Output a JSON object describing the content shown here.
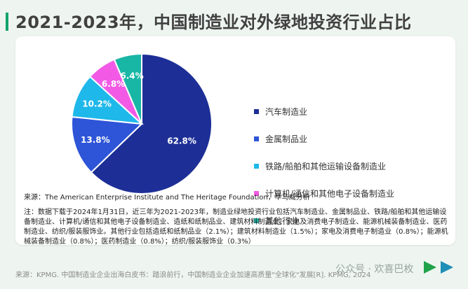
{
  "title": "2021-2023年，中国制造业对外绿地投资行业占比",
  "chart_data": {
    "type": "pie",
    "title": "2021-2023年，中国制造业对外绿地投资行业占比",
    "slices": [
      {
        "label": "汽车制造业",
        "value": 62.8,
        "display": "62.8%",
        "color": "#1d2f96"
      },
      {
        "label": "金属制品业",
        "value": 13.8,
        "display": "13.8%",
        "color": "#2e55d8"
      },
      {
        "label": "铁路/船舶和其他运输设备制造业",
        "value": 10.2,
        "display": "10.2%",
        "color": "#1fb8ea"
      },
      {
        "label": "计算机/通信和其他电子设备制造业",
        "value": 6.8,
        "display": "6.8%",
        "color": "#f25ae6"
      },
      {
        "label": "其他行业",
        "value": 6.4,
        "display": "6.4%",
        "color": "#18b6a5"
      }
    ],
    "legend_position": "right"
  },
  "source": "来源：The American Enterprise Institute and The Heritage Foundation，毕马威分析",
  "note": "注：数据下载于2024年1月31日，近三年为2021-2023年，制造业绿地投资行业包括汽车制造业、金属制品业、铁路/船舶和其他运输设备制造业、计算机/通信和其他电子设备制造业、造纸和纸制品业、建筑材料制造业、家电及消费电子制造业、能源机械装备制造业、医药制造业、纺织/服装服饰业。其他行业包括造纸和纸制品业（2.1%）；建筑材料制造业（1.5%）；家电及消费电子制造业（0.8%）；能源机械装备制造业（0.8%）；医药制造业（0.8%）；纺织/服装服饰业（0.3%）",
  "footer": "来源：KPMG. 中国制造业企业出海白皮书：踏浪前行，中国制造业企业加速高质量\"全球化\"发展[R]. KPMG, 2024",
  "watermark": "公众号 · 欢喜巴枚",
  "colors": {
    "accent": "#13a36c",
    "background": "#eef5f1"
  },
  "icons": [
    "play-arrow-green-icon",
    "play-arrow-teal-icon"
  ]
}
